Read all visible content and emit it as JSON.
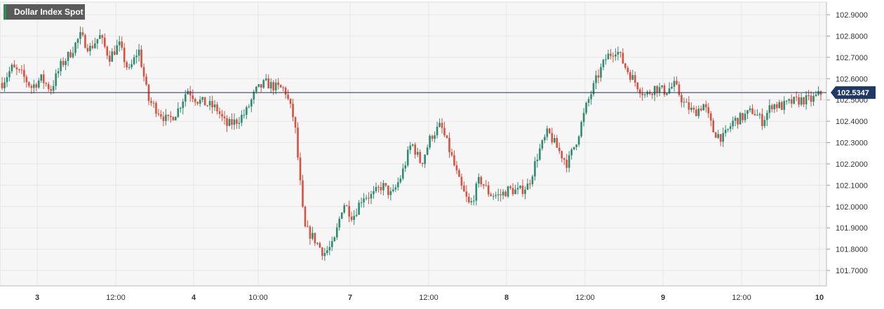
{
  "chart_data": {
    "type": "candlestick",
    "title": "Dollar Index Spot",
    "ylim": [
      101.65,
      102.95
    ],
    "y_ticks": [
      "102.9000",
      "102.8000",
      "102.7000",
      "102.6000",
      "102.5000",
      "102.4000",
      "102.3000",
      "102.2000",
      "102.1000",
      "102.0000",
      "101.9000",
      "101.8000",
      "101.7000"
    ],
    "x_ticks": [
      "3",
      "12:00",
      "4",
      "10:00",
      "7",
      "12:00",
      "8",
      "12:00",
      "9",
      "12:00",
      "10"
    ],
    "x_ticks_bold": [
      true,
      false,
      true,
      false,
      true,
      false,
      true,
      false,
      true,
      false,
      true
    ],
    "last_price": 102.5347,
    "last_price_label": "102.5347",
    "grid": true,
    "colors": {
      "up": "#2e8b6f",
      "down": "#d9503f",
      "price_line": "#1f2d5a",
      "price_badge": "#1f3864",
      "grid": "#e6e6e6",
      "plot_bg": "#f6f6f6"
    },
    "price_path": [
      102.58,
      102.65,
      102.62,
      102.56,
      102.6,
      102.55,
      102.66,
      102.72,
      102.8,
      102.74,
      102.8,
      102.7,
      102.76,
      102.63,
      102.74,
      102.5,
      102.45,
      102.4,
      102.45,
      102.55,
      102.5,
      102.48,
      102.46,
      102.38,
      102.4,
      102.44,
      102.54,
      102.58,
      102.56,
      102.55,
      102.4,
      101.9,
      101.85,
      101.78,
      101.82,
      102.02,
      101.95,
      102.05,
      102.05,
      102.1,
      102.05,
      102.15,
      102.3,
      102.2,
      102.33,
      102.38,
      102.25,
      102.1,
      102.0,
      102.13,
      102.06,
      102.05,
      102.08,
      102.07,
      102.1,
      102.25,
      102.35,
      102.27,
      102.2,
      102.32,
      102.48,
      102.6,
      102.7,
      102.74,
      102.65,
      102.58,
      102.52,
      102.56,
      102.54,
      102.57,
      102.48,
      102.44,
      102.48,
      102.35,
      102.32,
      102.4,
      102.42,
      102.45,
      102.4,
      102.48,
      102.47,
      102.49,
      102.5,
      102.5,
      102.53
    ]
  }
}
